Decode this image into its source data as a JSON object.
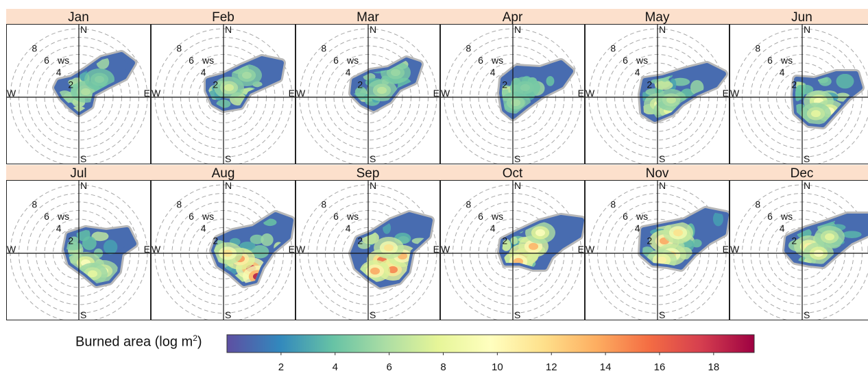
{
  "chart_data": {
    "type": "heatmap",
    "subtype": "polar-wind-rose-facets",
    "panels": [
      {
        "label": "Jan"
      },
      {
        "label": "Feb"
      },
      {
        "label": "Mar"
      },
      {
        "label": "Apr"
      },
      {
        "label": "May"
      },
      {
        "label": "Jun"
      },
      {
        "label": "Jul"
      },
      {
        "label": "Aug"
      },
      {
        "label": "Sep"
      },
      {
        "label": "Oct"
      },
      {
        "label": "Nov"
      },
      {
        "label": "Dec"
      }
    ],
    "panel_layout": {
      "rows": 2,
      "cols": 6
    },
    "radial_axis": {
      "label": "ws",
      "ticks": [
        2,
        4,
        6,
        8
      ],
      "range": [
        0,
        10
      ]
    },
    "directions": {
      "north": "N",
      "east": "E",
      "south": "S",
      "west": "W"
    },
    "colorbar": {
      "title_main": "Burned area (log m",
      "title_sup": "2",
      "title_close": ")",
      "range": [
        0,
        19.5
      ],
      "ticks": [
        2,
        4,
        6,
        8,
        10,
        12,
        14,
        16,
        18
      ],
      "colors": [
        "#5e4fa2",
        "#3288bd",
        "#66c2a5",
        "#abdda4",
        "#e6f598",
        "#ffffbf",
        "#fee08b",
        "#fdae61",
        "#f46d43",
        "#d53e4f",
        "#9e0142"
      ]
    },
    "colors": {
      "strip_fill": "#fce0cc",
      "no_data": "#b8b8b8",
      "grid": "#a8a8a8"
    }
  }
}
